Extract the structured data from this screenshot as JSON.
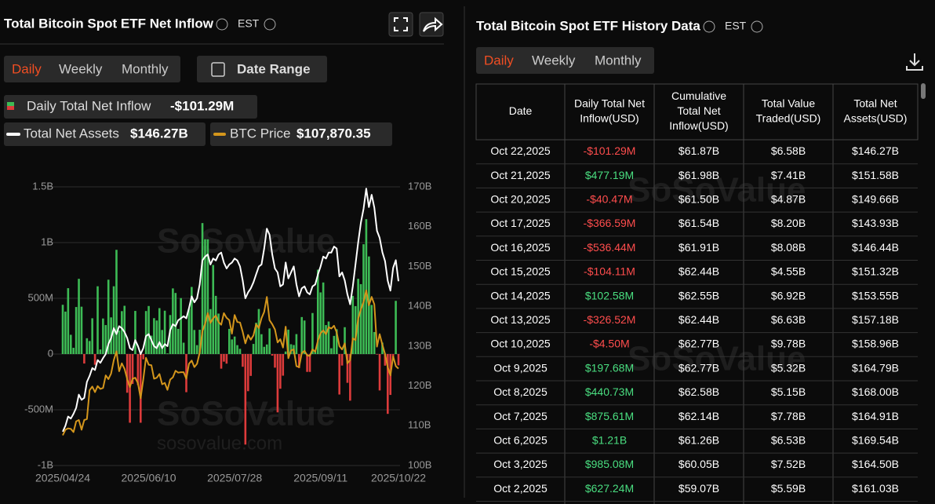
{
  "header": {
    "title": "Total Bitcoin Spot ETF Net Inflow",
    "timezone": "EST"
  },
  "tabs": [
    "Daily",
    "Weekly",
    "Monthly"
  ],
  "date_range": "Date Range",
  "legend_values": [
    "-$101.29M",
    "$146.27B",
    "$107,870.35"
  ],
  "watermark": {
    "brand": "SoSoValue",
    "url": "sosovalue.com"
  },
  "chart_data": {
    "type": "bar",
    "categories": [
      "2025/04/24",
      null,
      null,
      null,
      null,
      null,
      null,
      null,
      null,
      null,
      null,
      null,
      null,
      null,
      null,
      null,
      null,
      null,
      null,
      null,
      null,
      null,
      null,
      null,
      null,
      null,
      null,
      null,
      null,
      null,
      null,
      null,
      "2025/06/10",
      null,
      null,
      null,
      null,
      null,
      null,
      null,
      null,
      null,
      null,
      null,
      null,
      null,
      null,
      null,
      null,
      null,
      null,
      null,
      null,
      null,
      null,
      null,
      null,
      null,
      null,
      null,
      null,
      null,
      null,
      null,
      "2025/07/28",
      null,
      null,
      null,
      null,
      null,
      null,
      null,
      null,
      null,
      null,
      null,
      null,
      null,
      null,
      null,
      null,
      null,
      null,
      null,
      null,
      null,
      null,
      null,
      null,
      null,
      null,
      null,
      null,
      null,
      null,
      null,
      "2025/09/11",
      null,
      null,
      null,
      null,
      null,
      null,
      null,
      null,
      null,
      null,
      null,
      null,
      null,
      null,
      null,
      null,
      null,
      null,
      null,
      null,
      null,
      null,
      null,
      null,
      null,
      null,
      null,
      null,
      "2025/10/22"
    ],
    "series": [
      {
        "name": "Daily Total Net Inflow",
        "type": "bar",
        "color": "#3dbb55",
        "negative_color": "#dd3b3b",
        "values": [
          442,
          381,
          591,
          173,
          56,
          422,
          675,
          425,
          -85,
          142,
          117,
          321,
          -96,
          608,
          41,
          319,
          260,
          667,
          329,
          608,
          935,
          211,
          385,
          433,
          -347,
          -616,
          -268,
          387,
          -278,
          -616,
          -47,
          386,
          431,
          165,
          322,
          301,
          412,
          216,
          389,
          6,
          350,
          589,
          548,
          226,
          502,
          102,
          -342,
          407,
          602,
          216,
          80,
          218,
          1175,
          1030,
          1029,
          403,
          799,
          522,
          363,
          -131,
          -68,
          -86,
          226,
          131,
          157,
          80,
          47,
          -114,
          -812,
          -333,
          -196,
          91,
          281,
          404,
          178,
          65,
          86,
          230,
          -14,
          -122,
          -523,
          -311,
          -194,
          23,
          219,
          88,
          81,
          179,
          -126,
          332,
          301,
          -160,
          -160,
          368,
          23,
          757,
          553,
          642,
          260,
          292,
          52,
          163,
          223,
          -363,
          -103,
          241,
          -258,
          -418,
          522,
          430,
          675,
          627.24,
          985.08,
          1210,
          875.61,
          440.73,
          197.68,
          -4.5,
          -326.52,
          102.58,
          -104.11,
          -536.44,
          -366.59,
          -40.47,
          477.19,
          -101.29
        ]
      },
      {
        "name": "Total Net Assets",
        "type": "line",
        "axis": "y2",
        "color": "#ffffff",
        "values": [
          108.5,
          110,
          112.3,
          111.8,
          113,
          114.5,
          117.8,
          116.5,
          117,
          121,
          122.5,
          124.5,
          124,
          126.5,
          125.8,
          127,
          128,
          130.5,
          132,
          134.5,
          133,
          135,
          134.5,
          133.5,
          132,
          129.5,
          129,
          131.5,
          130,
          128,
          129.5,
          132.5,
          133,
          131.5,
          130,
          129.5,
          131,
          129.5,
          130.5,
          130,
          134,
          135.5,
          135,
          136.5,
          137,
          137.5,
          137,
          139.5,
          142.5,
          141,
          142,
          145.5,
          151.5,
          152.5,
          153,
          150.5,
          152,
          151.5,
          153,
          153.5,
          151,
          149.5,
          150.5,
          151,
          152,
          151.5,
          150,
          146.5,
          142,
          143.5,
          144.5,
          146,
          148,
          150,
          150.5,
          154.5,
          159.5,
          158,
          153,
          149.5,
          148.5,
          145,
          145.5,
          151,
          147,
          148.5,
          150,
          145.5,
          142.5,
          144.5,
          145,
          143.5,
          143,
          145,
          145.5,
          148,
          150,
          152.5,
          152,
          153.5,
          153.5,
          155,
          154.5,
          147.5,
          148.5,
          146.5,
          143,
          140.5,
          145,
          150.5,
          156,
          161.03,
          164.5,
          169.54,
          164.91,
          168,
          164.79,
          158.96,
          157.18,
          153.55,
          151.32,
          146.44,
          143.93,
          149.66,
          151.58,
          146.27
        ]
      },
      {
        "name": "BTC Price",
        "type": "line",
        "axis": "y3",
        "color": "#d4961c",
        "values": [
          93500,
          94700,
          95000,
          94900,
          94200,
          96500,
          96800,
          94700,
          96800,
          97000,
          103200,
          104000,
          102800,
          104100,
          103500,
          103700,
          106400,
          105600,
          106800,
          109700,
          111600,
          107300,
          109000,
          107800,
          105600,
          103900,
          105700,
          105900,
          104700,
          101500,
          105600,
          110200,
          108700,
          108600,
          105700,
          105900,
          106700,
          104500,
          104800,
          103300,
          105500,
          106000,
          107400,
          107000,
          107100,
          107100,
          105700,
          108900,
          109600,
          108200,
          108900,
          111300,
          115900,
          117500,
          119800,
          117700,
          118700,
          119300,
          117900,
          117300,
          119800,
          118800,
          118300,
          115400,
          119400,
          117900,
          117800,
          115800,
          113300,
          115100,
          114100,
          115000,
          117400,
          116600,
          118700,
          120100,
          123300,
          118300,
          117400,
          116300,
          113500,
          114200,
          112400,
          116900,
          110100,
          111800,
          112000,
          108400,
          108200,
          111200,
          111700,
          110700,
          110600,
          112000,
          111500,
          113900,
          115500,
          116100,
          115300,
          116800,
          116500,
          117100,
          115700,
          112700,
          112000,
          113300,
          109000,
          109700,
          114400,
          114000,
          118600,
          120600,
          122200,
          124700,
          121500,
          123300,
          121700,
          112600,
          115300,
          113000,
          111000,
          108200,
          106400,
          110500,
          108400,
          107870.35
        ]
      }
    ],
    "ylim": [
      -1000,
      1500
    ],
    "yticks": [
      {
        "value": -1000,
        "label": "-1B"
      },
      {
        "value": -500,
        "label": "-500M"
      },
      0,
      {
        "value": 500,
        "label": "500M"
      },
      {
        "value": 1000,
        "label": "1B"
      },
      {
        "value": 1500,
        "label": "1.5B"
      }
    ],
    "y2lim": [
      100,
      170
    ],
    "y2ticks": [
      {
        "value": 100,
        "label": "100B"
      },
      {
        "value": 110,
        "label": "110B"
      },
      {
        "value": 120,
        "label": "120B"
      },
      {
        "value": 130,
        "label": "130B"
      },
      {
        "value": 140,
        "label": "140B"
      },
      {
        "value": 150,
        "label": "150B"
      },
      {
        "value": 160,
        "label": "160B"
      },
      {
        "value": 170,
        "label": "170B"
      }
    ],
    "y3lim": [
      87000,
      147000
    ],
    "grid": true
  },
  "history": {
    "title": "Total Bitcoin Spot ETF History Data",
    "timezone": "EST",
    "tabs": [
      "Daily",
      "Weekly",
      "Monthly"
    ],
    "columns": [
      [
        "Date"
      ],
      [
        "Daily Total Net",
        "Inflow(USD)"
      ],
      [
        "Cumulative",
        "Total Net",
        "Inflow(USD)"
      ],
      [
        "Total Value",
        "Traded(USD)"
      ],
      [
        "Total Net",
        "Assets(USD)"
      ]
    ],
    "rows": [
      [
        "Oct 22,2025",
        "-$101.29M",
        "$61.87B",
        "$6.58B",
        "$146.27B"
      ],
      [
        "Oct 21,2025",
        "$477.19M",
        "$61.98B",
        "$7.41B",
        "$151.58B"
      ],
      [
        "Oct 20,2025",
        "-$40.47M",
        "$61.50B",
        "$4.87B",
        "$149.66B"
      ],
      [
        "Oct 17,2025",
        "-$366.59M",
        "$61.54B",
        "$8.20B",
        "$143.93B"
      ],
      [
        "Oct 16,2025",
        "-$536.44M",
        "$61.91B",
        "$8.08B",
        "$146.44B"
      ],
      [
        "Oct 15,2025",
        "-$104.11M",
        "$62.44B",
        "$4.55B",
        "$151.32B"
      ],
      [
        "Oct 14,2025",
        "$102.58M",
        "$62.55B",
        "$6.92B",
        "$153.55B"
      ],
      [
        "Oct 13,2025",
        "-$326.52M",
        "$62.44B",
        "$6.63B",
        "$157.18B"
      ],
      [
        "Oct 10,2025",
        "-$4.50M",
        "$62.77B",
        "$9.78B",
        "$158.96B"
      ],
      [
        "Oct 9,2025",
        "$197.68M",
        "$62.77B",
        "$5.32B",
        "$164.79B"
      ],
      [
        "Oct 8,2025",
        "$440.73M",
        "$62.58B",
        "$5.15B",
        "$168.00B"
      ],
      [
        "Oct 7,2025",
        "$875.61M",
        "$62.14B",
        "$7.78B",
        "$164.91B"
      ],
      [
        "Oct 6,2025",
        "$1.21B",
        "$61.26B",
        "$6.53B",
        "$169.54B"
      ],
      [
        "Oct 3,2025",
        "$985.08M",
        "$60.05B",
        "$7.52B",
        "$164.50B"
      ],
      [
        "Oct 2,2025",
        "$627.24M",
        "$59.07B",
        "$5.59B",
        "$161.03B"
      ]
    ]
  }
}
